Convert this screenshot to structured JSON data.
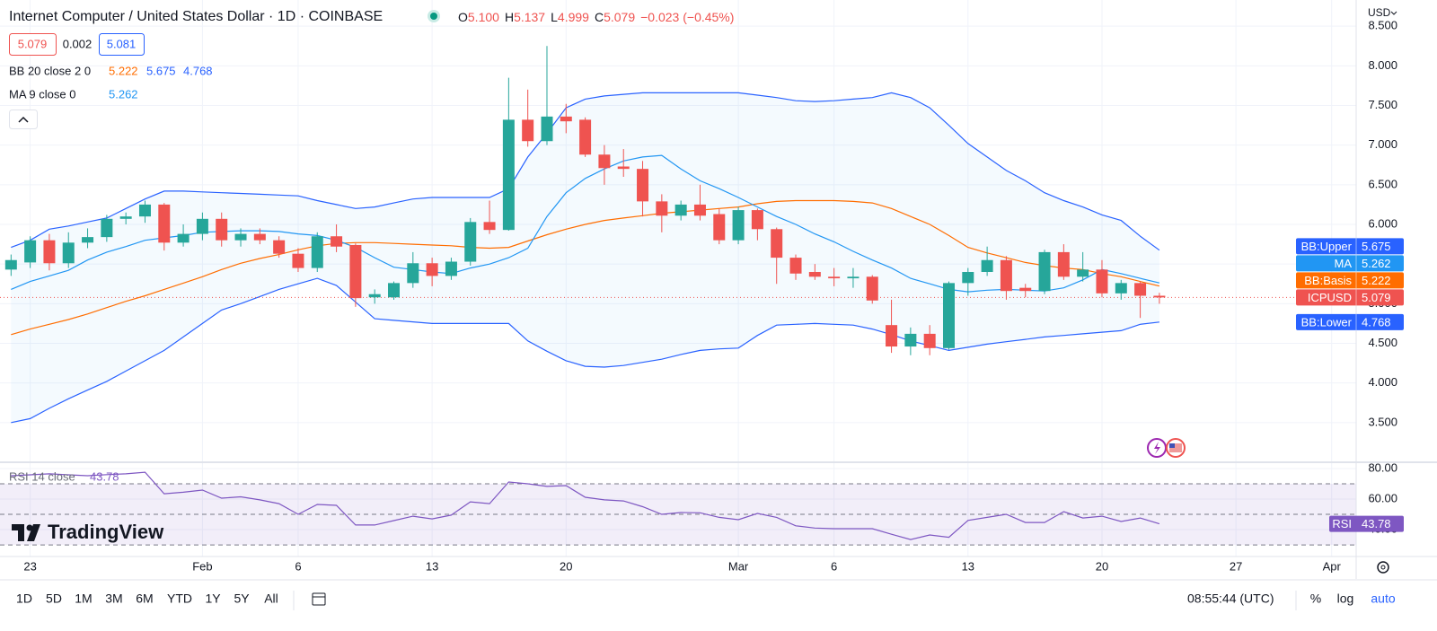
{
  "header": {
    "title": "Internet Computer / United States Dollar · 1D · COINBASE",
    "ohlc": [
      {
        "key": "O",
        "value": "5.100"
      },
      {
        "key": "H",
        "value": "5.137"
      },
      {
        "key": "L",
        "value": "4.999"
      },
      {
        "key": "C",
        "value": "5.079"
      }
    ],
    "change": "−0.023 (−0.45%)",
    "bid": "5.079",
    "spread": "0.002",
    "ask": "5.081",
    "currency": "USD"
  },
  "chart_data": [
    {
      "type": "candlestick",
      "symbol": "ICPUSD",
      "bb_title": "BB 20 close 2 0",
      "ma_title": "MA 9 close 0",
      "x": [
        "Jan 22",
        "Jan 23",
        "Jan 24",
        "Jan 25",
        "Jan 26",
        "Jan 27",
        "Jan 28",
        "Jan 29",
        "Jan 30",
        "Jan 31",
        "Feb 1",
        "Feb 2",
        "Feb 3",
        "Feb 4",
        "Feb 5",
        "Feb 6",
        "Feb 7",
        "Feb 8",
        "Feb 9",
        "Feb 10",
        "Feb 11",
        "Feb 12",
        "Feb 13",
        "Feb 14",
        "Feb 15",
        "Feb 16",
        "Feb 17",
        "Feb 18",
        "Feb 19",
        "Feb 20",
        "Feb 21",
        "Feb 22",
        "Feb 23",
        "Feb 24",
        "Feb 25",
        "Feb 26",
        "Feb 27",
        "Feb 28",
        "Mar 1",
        "Mar 2",
        "Mar 3",
        "Mar 4",
        "Mar 5",
        "Mar 6",
        "Mar 7",
        "Mar 8",
        "Mar 9",
        "Mar 10",
        "Mar 11",
        "Mar 12",
        "Mar 13",
        "Mar 14",
        "Mar 15",
        "Mar 16",
        "Mar 17",
        "Mar 18",
        "Mar 19",
        "Mar 20",
        "Mar 21",
        "Mar 22",
        "Mar 23"
      ],
      "open": [
        5.43,
        5.52,
        5.8,
        5.51,
        5.77,
        5.84,
        6.07,
        6.1,
        6.25,
        5.77,
        5.88,
        6.07,
        5.8,
        5.88,
        5.8,
        5.63,
        5.45,
        5.85,
        5.74,
        5.08,
        5.08,
        5.26,
        5.51,
        5.35,
        5.53,
        6.03,
        5.93,
        7.32,
        7.05,
        7.36,
        7.32,
        6.88,
        6.73,
        6.7,
        6.29,
        6.11,
        6.25,
        6.13,
        5.8,
        6.18,
        5.94,
        5.58,
        5.4,
        5.34,
        5.32,
        5.34,
        4.73,
        4.46,
        4.62,
        4.44,
        5.26,
        5.4,
        5.55,
        5.2,
        5.16,
        5.65,
        5.34,
        5.43,
        5.13,
        5.26,
        5.1
      ],
      "high": [
        5.62,
        5.85,
        5.88,
        5.9,
        5.95,
        6.12,
        6.15,
        6.3,
        6.27,
        6.0,
        6.15,
        6.15,
        5.95,
        5.95,
        5.85,
        5.7,
        5.9,
        6.0,
        5.76,
        5.18,
        5.28,
        5.65,
        5.58,
        5.58,
        6.08,
        6.3,
        7.85,
        7.7,
        8.25,
        7.52,
        7.35,
        7.0,
        6.95,
        6.8,
        6.38,
        6.3,
        6.5,
        6.2,
        6.22,
        6.2,
        5.96,
        5.62,
        5.5,
        5.45,
        5.45,
        5.36,
        5.05,
        4.7,
        4.73,
        5.28,
        5.45,
        5.72,
        5.6,
        5.25,
        5.68,
        5.75,
        5.65,
        5.55,
        5.3,
        5.28,
        5.137
      ],
      "low": [
        5.35,
        5.45,
        5.42,
        5.45,
        5.7,
        5.78,
        6.0,
        6.02,
        5.67,
        5.72,
        5.8,
        5.72,
        5.72,
        5.75,
        5.58,
        5.4,
        5.4,
        5.65,
        4.96,
        5.0,
        5.05,
        5.2,
        5.22,
        5.3,
        5.48,
        5.88,
        5.92,
        6.98,
        7.0,
        7.15,
        6.85,
        6.5,
        6.6,
        6.1,
        5.9,
        6.05,
        6.05,
        5.75,
        5.75,
        5.8,
        5.25,
        5.3,
        5.3,
        5.22,
        5.2,
        5.0,
        4.38,
        4.35,
        4.35,
        4.42,
        5.1,
        5.35,
        5.05,
        5.08,
        5.12,
        5.3,
        5.28,
        5.08,
        5.05,
        4.82,
        4.999
      ],
      "close": [
        5.55,
        5.8,
        5.51,
        5.77,
        5.84,
        6.07,
        6.1,
        6.25,
        5.77,
        5.88,
        6.07,
        5.8,
        5.88,
        5.8,
        5.63,
        5.45,
        5.85,
        5.72,
        5.07,
        5.12,
        5.26,
        5.51,
        5.35,
        5.53,
        6.03,
        5.93,
        7.32,
        7.05,
        7.36,
        7.3,
        6.88,
        6.71,
        6.7,
        6.29,
        6.11,
        6.25,
        6.11,
        5.8,
        6.18,
        5.94,
        5.58,
        5.38,
        5.34,
        5.32,
        5.34,
        5.04,
        4.46,
        4.62,
        4.44,
        5.26,
        5.4,
        5.55,
        5.16,
        5.16,
        5.65,
        5.34,
        5.43,
        5.13,
        5.26,
        5.1,
        5.079
      ],
      "up_color": "#26a69a",
      "down_color": "#ef5350",
      "series": [
        {
          "name": "BB:Upper",
          "color": "#2962ff",
          "values": [
            5.71,
            5.8,
            5.94,
            5.98,
            6.03,
            6.08,
            6.2,
            6.32,
            6.42,
            6.42,
            6.41,
            6.4,
            6.39,
            6.38,
            6.37,
            6.36,
            6.3,
            6.25,
            6.2,
            6.22,
            6.27,
            6.32,
            6.34,
            6.34,
            6.34,
            6.34,
            6.45,
            6.85,
            7.15,
            7.47,
            7.58,
            7.62,
            7.64,
            7.66,
            7.66,
            7.66,
            7.66,
            7.66,
            7.66,
            7.63,
            7.6,
            7.56,
            7.55,
            7.56,
            7.58,
            7.6,
            7.66,
            7.6,
            7.47,
            7.25,
            7.02,
            6.85,
            6.68,
            6.55,
            6.4,
            6.3,
            6.22,
            6.12,
            6.05,
            5.85,
            5.675
          ]
        },
        {
          "name": "BB:Basis",
          "color": "#ff6d00",
          "values": [
            4.61,
            4.68,
            4.74,
            4.8,
            4.87,
            4.95,
            5.03,
            5.1,
            5.18,
            5.26,
            5.34,
            5.43,
            5.51,
            5.57,
            5.62,
            5.68,
            5.73,
            5.76,
            5.77,
            5.77,
            5.76,
            5.75,
            5.74,
            5.73,
            5.71,
            5.7,
            5.71,
            5.79,
            5.87,
            5.94,
            6.0,
            6.05,
            6.08,
            6.11,
            6.14,
            6.16,
            6.18,
            6.2,
            6.22,
            6.26,
            6.29,
            6.3,
            6.3,
            6.3,
            6.29,
            6.27,
            6.2,
            6.1,
            6.0,
            5.86,
            5.71,
            5.64,
            5.58,
            5.52,
            5.48,
            5.45,
            5.43,
            5.38,
            5.34,
            5.28,
            5.222
          ]
        },
        {
          "name": "BB:Lower",
          "color": "#2962ff",
          "values": [
            3.5,
            3.55,
            3.68,
            3.8,
            3.91,
            4.02,
            4.15,
            4.28,
            4.41,
            4.58,
            4.75,
            4.92,
            5.0,
            5.09,
            5.18,
            5.25,
            5.32,
            5.23,
            5.02,
            4.81,
            4.79,
            4.77,
            4.75,
            4.75,
            4.75,
            4.75,
            4.75,
            4.53,
            4.4,
            4.28,
            4.21,
            4.2,
            4.22,
            4.26,
            4.3,
            4.36,
            4.41,
            4.43,
            4.44,
            4.6,
            4.73,
            4.74,
            4.75,
            4.74,
            4.73,
            4.68,
            4.61,
            4.53,
            4.47,
            4.41,
            4.45,
            4.49,
            4.52,
            4.55,
            4.58,
            4.6,
            4.62,
            4.64,
            4.66,
            4.74,
            4.768
          ]
        },
        {
          "name": "MA",
          "color": "#2196f3",
          "values": [
            5.18,
            5.28,
            5.35,
            5.42,
            5.55,
            5.65,
            5.72,
            5.8,
            5.83,
            5.86,
            5.9,
            5.91,
            5.92,
            5.92,
            5.91,
            5.88,
            5.86,
            5.8,
            5.71,
            5.58,
            5.46,
            5.43,
            5.4,
            5.38,
            5.45,
            5.5,
            5.58,
            5.7,
            6.1,
            6.4,
            6.58,
            6.7,
            6.8,
            6.85,
            6.87,
            6.7,
            6.55,
            6.45,
            6.34,
            6.22,
            6.1,
            6.0,
            5.88,
            5.78,
            5.66,
            5.55,
            5.45,
            5.32,
            5.25,
            5.18,
            5.15,
            5.17,
            5.18,
            5.17,
            5.16,
            5.2,
            5.3,
            5.43,
            5.38,
            5.32,
            5.262
          ]
        }
      ],
      "band_color": "#2196f3",
      "xlim": [
        "Jan 21",
        "Apr 2"
      ],
      "xticks": [
        {
          "value": "Jan 23",
          "label": "23"
        },
        {
          "value": "Feb 1",
          "label": "Feb"
        },
        {
          "value": "Feb 6",
          "label": "6"
        },
        {
          "value": "Feb 13",
          "label": "13"
        },
        {
          "value": "Feb 20",
          "label": "20"
        },
        {
          "value": "Mar 1",
          "label": "Mar"
        },
        {
          "value": "Mar 6",
          "label": "6"
        },
        {
          "value": "Mar 13",
          "label": "13"
        },
        {
          "value": "Mar 20",
          "label": "20"
        },
        {
          "value": "Mar 27",
          "label": "27"
        },
        {
          "value": "Apr 1",
          "label": "Apr"
        }
      ],
      "ylim": [
        3.0,
        8.83
      ],
      "yticks": [
        {
          "value": 3.5,
          "label": "3.500"
        },
        {
          "value": 4,
          "label": "4.000"
        },
        {
          "value": 4.5,
          "label": "4.500"
        },
        {
          "value": 5,
          "label": "5.000"
        },
        {
          "value": 5.5,
          "label": "5.500"
        },
        {
          "value": 6,
          "label": "6.000"
        },
        {
          "value": 6.5,
          "label": "6.500"
        },
        {
          "value": 7,
          "label": "7.000"
        },
        {
          "value": 7.5,
          "label": "7.500"
        },
        {
          "value": 8,
          "label": "8.000"
        },
        {
          "value": 8.5,
          "label": "8.500"
        }
      ],
      "grid": true
    },
    {
      "type": "line",
      "title": "RSI 14 close",
      "series": [
        {
          "name": "RSI",
          "color": "#7e57c2",
          "values": [
            75.3,
            75.9,
            76.5,
            75.9,
            75.3,
            76.0,
            76.5,
            77.6,
            63.5,
            64.5,
            65.9,
            60.6,
            61.5,
            59.5,
            57.0,
            50.0,
            56.5,
            55.9,
            43.0,
            43.0,
            45.9,
            48.8,
            47.0,
            49.5,
            58.2,
            57.0,
            71.2,
            70.0,
            68.3,
            68.8,
            61.2,
            59.5,
            58.8,
            55.0,
            50.0,
            51.2,
            51.0,
            48.0,
            46.5,
            50.6,
            48.0,
            42.5,
            41.0,
            40.6,
            40.6,
            40.6,
            37.0,
            33.5,
            36.5,
            35.0,
            46.0,
            48.0,
            50.0,
            44.7,
            44.7,
            51.8,
            47.6,
            48.8,
            45.3,
            47.6,
            43.78
          ]
        }
      ],
      "band_lines": [
        70,
        50,
        30
      ],
      "ylim": [
        22.4,
        84.1
      ],
      "yticks": [
        {
          "value": 40,
          "label": "40.00"
        },
        {
          "value": 60,
          "label": "60.00"
        },
        {
          "value": 80,
          "label": "80.00"
        }
      ],
      "grid": true
    }
  ],
  "toolbar": {
    "ranges": [
      "1D",
      "5D",
      "1M",
      "3M",
      "6M",
      "YTD",
      "1Y",
      "5Y",
      "All"
    ],
    "time": "08:55:44 (UTC)",
    "percent": "%",
    "log": "log",
    "auto": "auto"
  },
  "logo": "TradingView"
}
